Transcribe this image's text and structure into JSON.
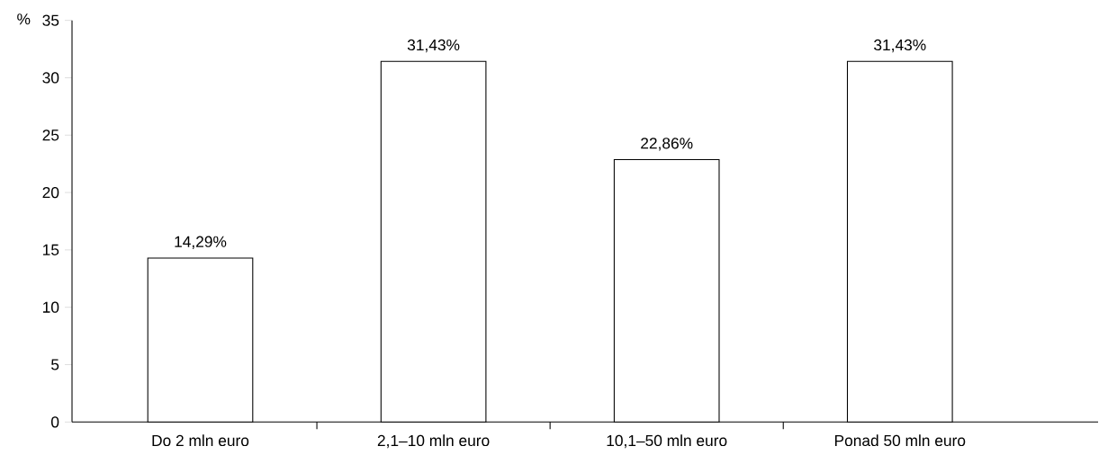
{
  "chart_data": {
    "type": "bar",
    "ylabel": "%",
    "categories": [
      "Do 2 mln euro",
      "2,1–10 mln euro",
      "10,1–50 mln euro",
      "Ponad 50 mln euro"
    ],
    "values": [
      14.29,
      31.43,
      22.86,
      31.43
    ],
    "value_labels": [
      "14,29%",
      "31,43%",
      "22,86%",
      "31,43%"
    ],
    "color": "#ffffff",
    "ylim": [
      0,
      35
    ],
    "yticks": [
      0,
      5,
      10,
      15,
      20,
      25,
      30,
      35
    ],
    "grid": false
  }
}
